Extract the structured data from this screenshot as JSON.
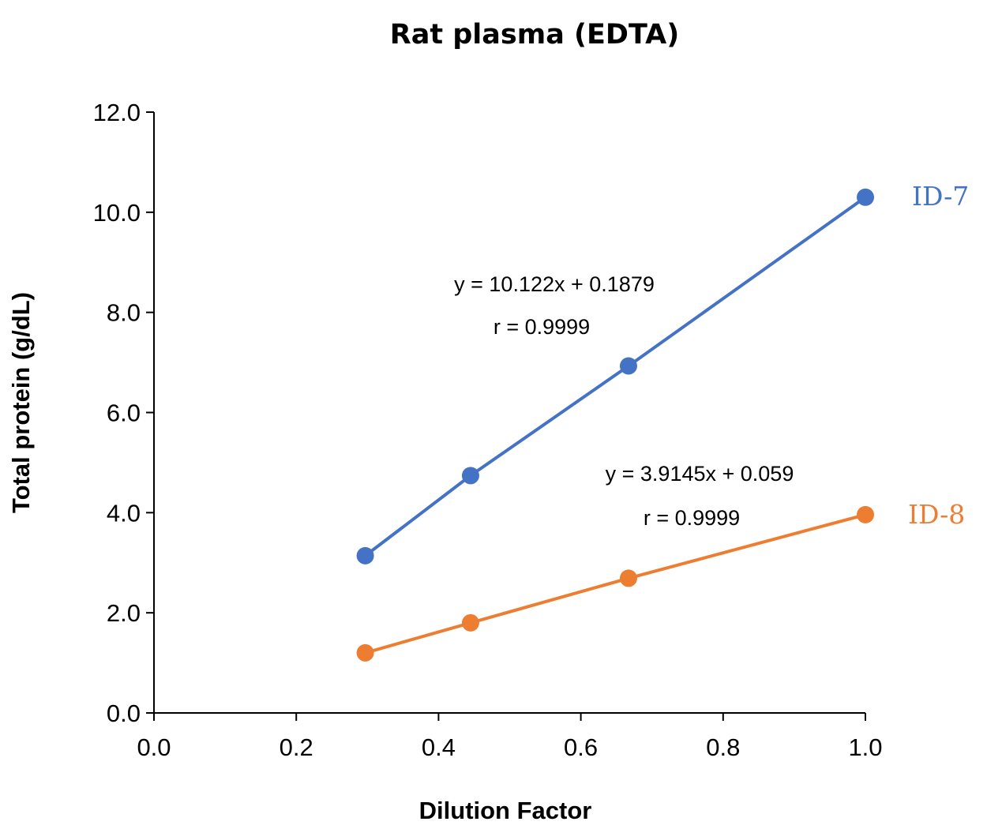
{
  "chart_data": {
    "type": "line",
    "title": "Rat plasma (EDTA)",
    "xlabel": "Dilution Factor",
    "ylabel": "Total protein (g/dL)",
    "xlim": [
      0.0,
      1.0
    ],
    "ylim": [
      0.0,
      12.0
    ],
    "x_ticks": [
      "0.0",
      "0.2",
      "0.4",
      "0.6",
      "0.8",
      "1.0"
    ],
    "y_ticks": [
      "0.0",
      "2.0",
      "4.0",
      "6.0",
      "8.0",
      "10.0",
      "12.0"
    ],
    "grid": false,
    "legend": "none",
    "series": [
      {
        "name": "ID-7",
        "color": "#4472C4",
        "x": [
          0.297,
          0.445,
          0.667,
          1.0
        ],
        "y": [
          3.14,
          4.74,
          6.93,
          10.3
        ],
        "equation": "y = 10.122x + 0.1879",
        "r": "r = 0.9999"
      },
      {
        "name": "ID-8",
        "color": "#ED7D31",
        "x": [
          0.297,
          0.445,
          0.667,
          1.0
        ],
        "y": [
          1.2,
          1.8,
          2.69,
          3.96
        ],
        "equation": "y = 3.9145x + 0.059",
        "r": "r = 0.9999"
      }
    ]
  }
}
